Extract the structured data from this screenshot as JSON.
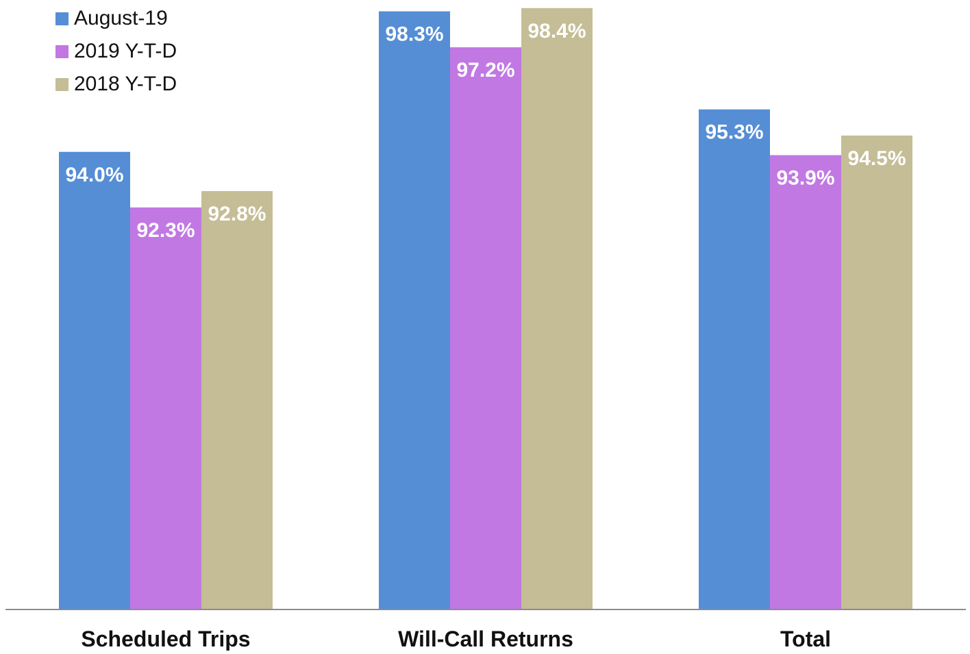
{
  "chart_data": {
    "type": "bar",
    "title": "",
    "xlabel": "",
    "ylabel": "",
    "categories": [
      "Scheduled Trips",
      "Will-Call Returns",
      "Total"
    ],
    "series": [
      {
        "name": "August-19",
        "color": "#558ed5",
        "values": [
          94.0,
          98.3,
          95.3
        ],
        "labels": [
          "94.0%",
          "98.3%",
          "95.3%"
        ]
      },
      {
        "name": "2019 Y-T-D",
        "color": "#c178e3",
        "values": [
          92.3,
          97.2,
          93.9
        ],
        "labels": [
          "92.3%",
          "97.2%",
          "93.9%"
        ]
      },
      {
        "name": "2018 Y-T-D",
        "color": "#c5bd96",
        "values": [
          92.8,
          98.4,
          94.5
        ],
        "labels": [
          "92.8%",
          "98.4%",
          "94.5%"
        ]
      }
    ],
    "ylim": [
      80,
      98.5
    ],
    "grid": false,
    "legend": "top-left"
  }
}
